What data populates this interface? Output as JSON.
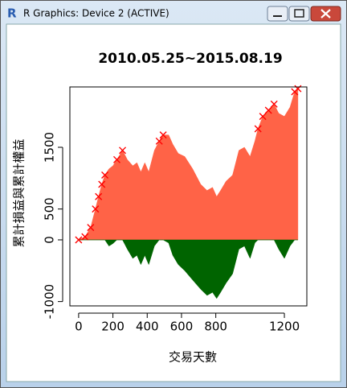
{
  "window": {
    "title": "R Graphics: Device 2 (ACTIVE)"
  },
  "chart_data": {
    "type": "area",
    "title": "2010.05.25~2015.08.19",
    "xlabel": "交易天數",
    "ylabel": "累計損益與累計權益",
    "x": [
      0,
      37,
      70,
      98,
      116,
      135,
      153,
      177,
      200,
      223,
      256,
      284,
      316,
      340,
      363,
      386,
      409,
      442,
      470,
      493,
      525,
      549,
      581,
      619,
      665,
      712,
      749,
      781,
      805,
      828,
      860,
      898,
      935,
      967,
      1000,
      1028,
      1046,
      1074,
      1107,
      1140,
      1167,
      1200,
      1233,
      1260,
      1279
    ],
    "series": [
      {
        "color": "#ff6347",
        "values": [
          0,
          50,
          200,
          500,
          700,
          900,
          1050,
          1150,
          1200,
          1300,
          1450,
          1300,
          1200,
          1250,
          1100,
          1250,
          1100,
          1450,
          1600,
          1700,
          1700,
          1550,
          1400,
          1350,
          1150,
          900,
          800,
          850,
          700,
          800,
          950,
          1050,
          1450,
          1500,
          1350,
          1600,
          1800,
          2000,
          2100,
          2200,
          2050,
          2000,
          2150,
          2400,
          2450
        ]
      },
      {
        "color": "#006400",
        "values": [
          0,
          0,
          0,
          0,
          0,
          0,
          0,
          -100,
          -60,
          0,
          0,
          -150,
          -300,
          -250,
          -400,
          -250,
          -400,
          -100,
          0,
          0,
          -50,
          -250,
          -400,
          -500,
          -650,
          -800,
          -900,
          -850,
          -950,
          -850,
          -700,
          -550,
          -150,
          -100,
          -300,
          -50,
          0,
          0,
          0,
          0,
          -150,
          -300,
          -100,
          0,
          0
        ]
      }
    ],
    "marker_color": "#ff0000",
    "xlim": [
      -51,
      1331
    ],
    "ylim": [
      -1070,
      2478
    ],
    "xticks": [
      0,
      200,
      400,
      600,
      800,
      1200
    ],
    "yticks": [
      -1000,
      0,
      500,
      1500
    ]
  }
}
